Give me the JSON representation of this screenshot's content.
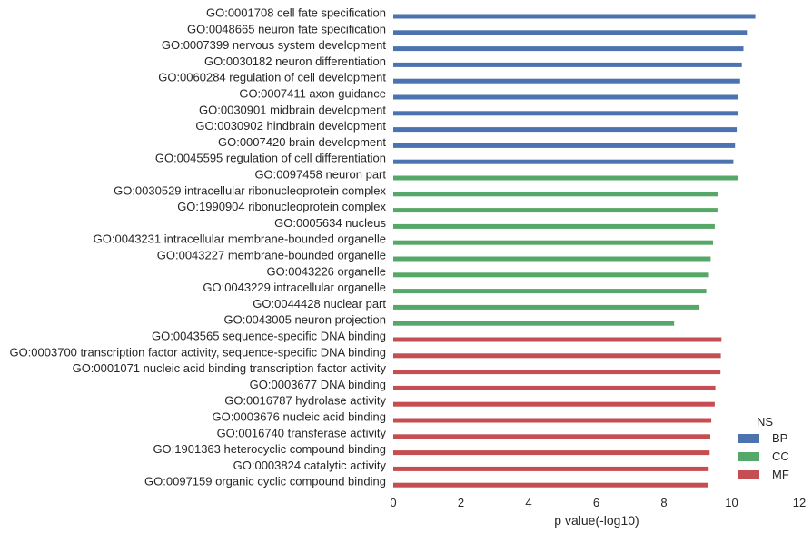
{
  "chart_data": {
    "type": "bar",
    "orientation": "horizontal",
    "xlabel": "p value(-log10)",
    "ylabel": "",
    "xlim": [
      0,
      12
    ],
    "xticks": [
      0,
      2,
      4,
      6,
      8,
      10,
      12
    ],
    "grid": false,
    "legend": {
      "title": "NS",
      "placement": "bottom-right",
      "entries": [
        {
          "name": "BP",
          "color": "#4c72b0"
        },
        {
          "name": "CC",
          "color": "#55a868"
        },
        {
          "name": "MF",
          "color": "#c44e52"
        }
      ]
    },
    "series": [
      {
        "name": "BP",
        "color": "#4c72b0"
      },
      {
        "name": "CC",
        "color": "#55a868"
      },
      {
        "name": "MF",
        "color": "#c44e52"
      }
    ],
    "categories": [
      "GO:0001708 cell fate specification",
      "GO:0048665 neuron fate specification",
      "GO:0007399 nervous system development",
      "GO:0030182 neuron differentiation",
      "GO:0060284 regulation of cell development",
      "GO:0007411 axon guidance",
      "GO:0030901 midbrain development",
      "GO:0030902 hindbrain development",
      "GO:0007420 brain development",
      "GO:0045595 regulation of cell differentiation",
      "GO:0097458 neuron part",
      "GO:0030529 intracellular ribonucleoprotein complex",
      "GO:1990904 ribonucleoprotein complex",
      "GO:0005634 nucleus",
      "GO:0043231 intracellular membrane-bounded organelle",
      "GO:0043227 membrane-bounded organelle",
      "GO:0043226 organelle",
      "GO:0043229 intracellular organelle",
      "GO:0044428 nuclear part",
      "GO:0043005 neuron projection",
      "GO:0043565 sequence-specific DNA binding",
      "GO:0003700 transcription factor activity, sequence-specific DNA binding",
      "GO:0001071 nucleic acid binding transcription factor activity",
      "GO:0003677 DNA binding",
      "GO:0016787 hydrolase activity",
      "GO:0003676 nucleic acid binding",
      "GO:0016740 transferase activity",
      "GO:1901363 heterocyclic compound binding",
      "GO:0003824 catalytic activity",
      "GO:0097159 organic cyclic compound binding"
    ],
    "values": [
      10.7,
      10.45,
      10.35,
      10.3,
      10.25,
      10.2,
      10.18,
      10.15,
      10.1,
      10.05,
      10.18,
      9.6,
      9.58,
      9.5,
      9.45,
      9.38,
      9.33,
      9.25,
      9.05,
      8.3,
      9.7,
      9.68,
      9.67,
      9.52,
      9.5,
      9.4,
      9.37,
      9.35,
      9.32,
      9.3
    ],
    "groups": [
      "BP",
      "BP",
      "BP",
      "BP",
      "BP",
      "BP",
      "BP",
      "BP",
      "BP",
      "BP",
      "CC",
      "CC",
      "CC",
      "CC",
      "CC",
      "CC",
      "CC",
      "CC",
      "CC",
      "CC",
      "MF",
      "MF",
      "MF",
      "MF",
      "MF",
      "MF",
      "MF",
      "MF",
      "MF",
      "MF"
    ]
  }
}
